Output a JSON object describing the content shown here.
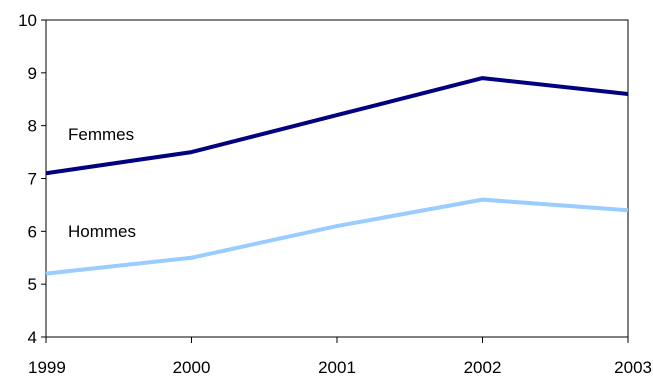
{
  "chart_data": {
    "type": "line",
    "x": [
      "1999",
      "2000",
      "2001",
      "2002",
      "2003"
    ],
    "series": [
      {
        "name": "Femmes",
        "values": [
          7.1,
          7.5,
          8.2,
          8.9,
          8.6
        ],
        "color": "#000080"
      },
      {
        "name": "Hommes",
        "values": [
          5.2,
          5.5,
          6.1,
          6.6,
          6.4
        ],
        "color": "#99ccff"
      }
    ],
    "title": "",
    "xlabel": "",
    "ylabel": "",
    "ylim": [
      4,
      10
    ],
    "yticks": [
      "4",
      "5",
      "6",
      "7",
      "8",
      "9",
      "10"
    ],
    "grid": false,
    "legend": "inline labels"
  }
}
